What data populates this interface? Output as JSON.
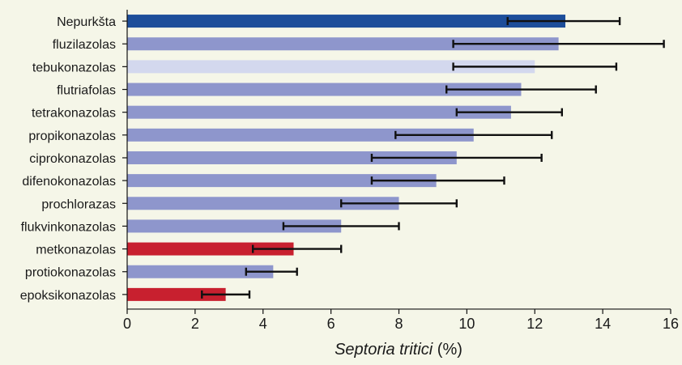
{
  "chart_data": {
    "type": "bar",
    "orientation": "horizontal",
    "categories": [
      "Nepurkšta",
      "fluzilazolas",
      "tebukonazolas",
      "flutriafolas",
      "tetrakonazolas",
      "propikonazolas",
      "ciprokonazolas",
      "difenokonazolas",
      "prochlorazas",
      "flukvinkonazolas",
      "metkonazolas",
      "protiokonazolas",
      "epoksikonazolas"
    ],
    "values": [
      12.9,
      12.7,
      12.0,
      11.6,
      11.3,
      10.2,
      9.7,
      9.1,
      8.0,
      6.3,
      4.9,
      4.3,
      2.9
    ],
    "error_low": [
      11.2,
      9.6,
      9.6,
      9.4,
      9.7,
      7.9,
      7.2,
      7.2,
      6.3,
      4.6,
      3.7,
      3.5,
      2.2
    ],
    "error_high": [
      14.5,
      15.8,
      14.4,
      13.8,
      12.8,
      12.5,
      12.2,
      11.1,
      9.7,
      8.0,
      6.3,
      5.0,
      3.6
    ],
    "bar_colors": [
      "#1d4e9a",
      "#8e96cc",
      "#d3d8ee",
      "#8e96cc",
      "#8e96cc",
      "#8e96cc",
      "#8e96cc",
      "#8e96cc",
      "#8e96cc",
      "#8e96cc",
      "#c8202f",
      "#8e96cc",
      "#c8202f"
    ],
    "xlabel_italic": "Septoria tritici",
    "xlabel_unit": " (%)",
    "xlim": [
      0,
      16
    ],
    "xticks": [
      "0",
      "2",
      "4",
      "6",
      "8",
      "10",
      "12",
      "14",
      "16"
    ],
    "grid": false,
    "background": "#f5f6e8"
  }
}
